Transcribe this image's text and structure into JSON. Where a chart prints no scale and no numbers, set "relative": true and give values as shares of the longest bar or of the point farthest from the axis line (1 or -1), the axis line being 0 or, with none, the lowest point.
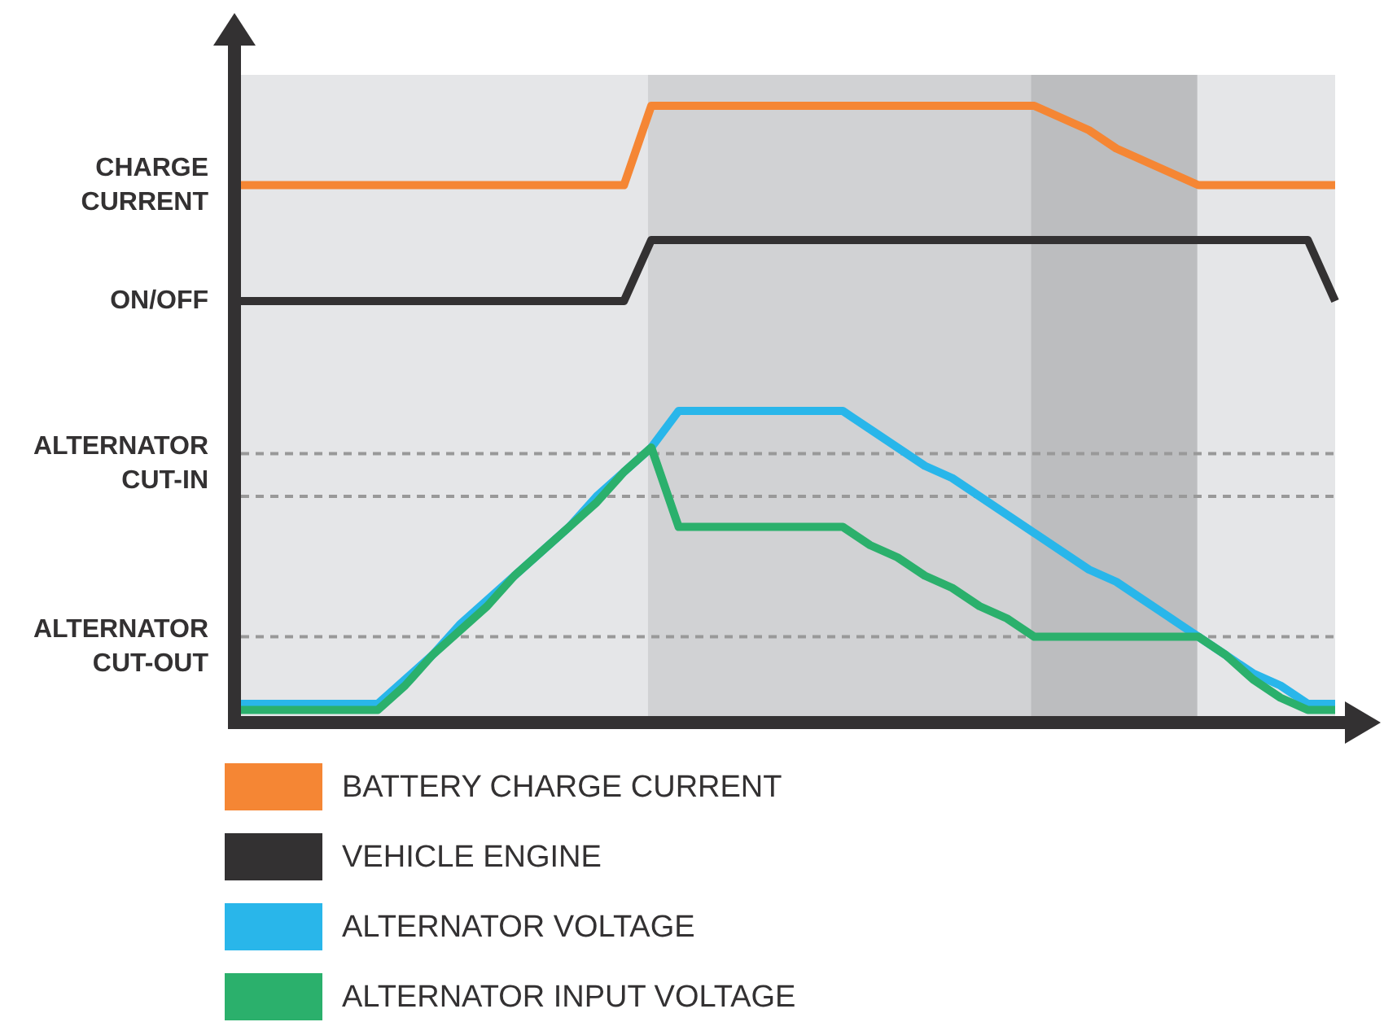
{
  "chart_data": {
    "type": "line",
    "relative": true,
    "legend": "bottom",
    "line_style": "solid",
    "categories": [
      null,
      null,
      null,
      null,
      null,
      null,
      null,
      null,
      null,
      null,
      null,
      null,
      null,
      null,
      null,
      null,
      null,
      null,
      null,
      null,
      null,
      null,
      null,
      null,
      null,
      null,
      null,
      null,
      null,
      null,
      null,
      null,
      null,
      null,
      null,
      null,
      null,
      null,
      null,
      null,
      null
    ],
    "series": [
      {
        "name": "BATTERY CHARGE CURRENT",
        "color": "#f58634",
        "values": [
          0.87,
          0.87,
          0.87,
          0.87,
          0.87,
          0.87,
          0.87,
          0.87,
          0.87,
          0.87,
          0.87,
          0.87,
          0.87,
          0.87,
          0.87,
          1,
          1,
          1,
          1,
          1,
          1,
          1,
          1,
          1,
          1,
          1,
          1,
          1,
          1,
          1,
          0.98,
          0.96,
          0.93,
          0.91,
          0.89,
          0.87,
          0.87,
          0.87,
          0.87,
          0.87,
          0.87
        ]
      },
      {
        "name": "VEHICLE ENGINE",
        "color": "#333132",
        "values": [
          0.68,
          0.68,
          0.68,
          0.68,
          0.68,
          0.68,
          0.68,
          0.68,
          0.68,
          0.68,
          0.68,
          0.68,
          0.68,
          0.68,
          0.68,
          0.78,
          0.78,
          0.78,
          0.78,
          0.78,
          0.78,
          0.78,
          0.78,
          0.78,
          0.78,
          0.78,
          0.78,
          0.78,
          0.78,
          0.78,
          0.78,
          0.78,
          0.78,
          0.78,
          0.78,
          0.78,
          0.78,
          0.78,
          0.78,
          0.78,
          0.68
        ]
      },
      {
        "name": "ALTERNATOR VOLTAGE",
        "color": "#29b6ea",
        "values": [
          0.02,
          0.02,
          0.02,
          0.02,
          0.02,
          0.02,
          0.06,
          0.1,
          0.15,
          0.19,
          0.23,
          0.27,
          0.31,
          0.36,
          0.4,
          0.44,
          0.5,
          0.5,
          0.5,
          0.5,
          0.5,
          0.5,
          0.5,
          0.47,
          0.44,
          0.41,
          0.39,
          0.36,
          0.33,
          0.3,
          0.27,
          0.24,
          0.22,
          0.19,
          0.16,
          0.13,
          0.1,
          0.07,
          0.05,
          0.02,
          0.02
        ]
      },
      {
        "name": "ALTERNATOR INPUT VOLTAGE",
        "color": "#2bb06c",
        "values": [
          0.01,
          0.01,
          0.01,
          0.01,
          0.01,
          0.01,
          0.05,
          0.1,
          0.14,
          0.18,
          0.23,
          0.27,
          0.31,
          0.35,
          0.4,
          0.44,
          0.31,
          0.31,
          0.31,
          0.31,
          0.31,
          0.31,
          0.31,
          0.28,
          0.26,
          0.23,
          0.21,
          0.18,
          0.16,
          0.13,
          0.13,
          0.13,
          0.13,
          0.13,
          0.13,
          0.13,
          0.1,
          0.06,
          0.03,
          0.01,
          0.01
        ]
      }
    ],
    "ref_lines": [
      {
        "axis": "y",
        "value": 0.43,
        "label": "ALTERNATOR CUT-IN",
        "color": "#999999",
        "line_style": "dashed"
      },
      {
        "axis": "y",
        "value": 0.36,
        "color": "#999999",
        "line_style": "dashed"
      },
      {
        "axis": "y",
        "value": 0.13,
        "label": "ALTERNATOR CUT-OUT",
        "color": "#999999",
        "line_style": "dashed"
      }
    ],
    "annotations": [
      "CHARGE CURRENT",
      "ON/OFF"
    ]
  }
}
